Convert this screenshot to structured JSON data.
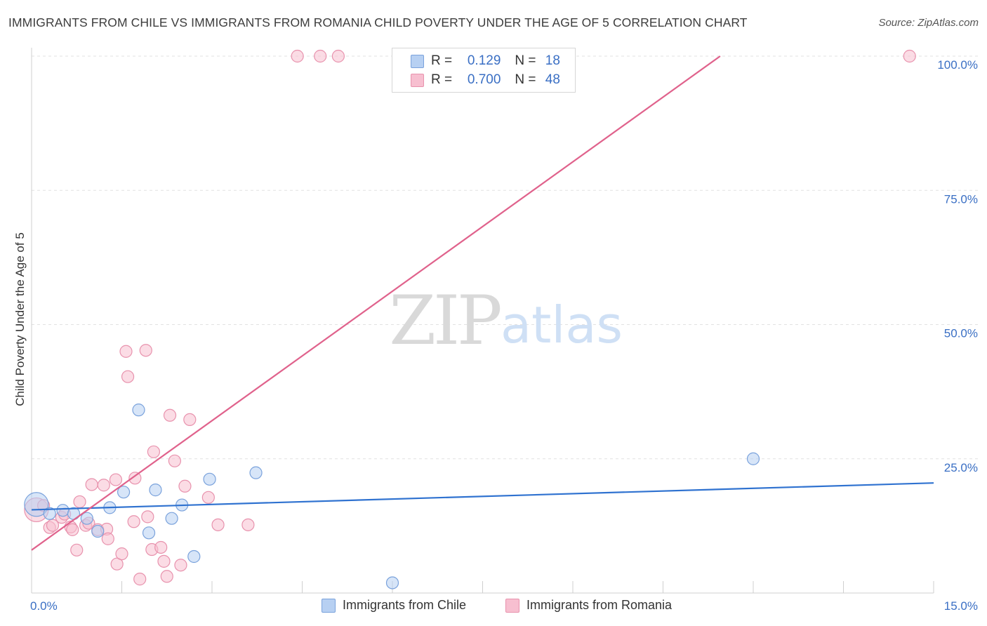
{
  "header": {
    "title": "IMMIGRANTS FROM CHILE VS IMMIGRANTS FROM ROMANIA CHILD POVERTY UNDER THE AGE OF 5 CORRELATION CHART",
    "source": "Source: ZipAtlas.com"
  },
  "watermark": {
    "zip": "ZIP",
    "atlas": "atlas"
  },
  "legend": {
    "rows": [
      {
        "r_label": "R =",
        "r_value": "0.129",
        "n_label": "N =",
        "n_value": "18"
      },
      {
        "r_label": "R =",
        "r_value": "0.700",
        "n_label": "N =",
        "n_value": "48"
      }
    ]
  },
  "colors": {
    "chile_fill": "#b7d0f2",
    "chile_stroke": "#7aa2dc",
    "chile_line": "#2f72d0",
    "romania_fill": "#f7bfd0",
    "romania_stroke": "#e892ad",
    "romania_line": "#e0628c",
    "grid": "#e2e2e2",
    "axis_label": "#3a6fc4"
  },
  "chart_data": {
    "type": "scatter",
    "title": "IMMIGRANTS FROM CHILE VS IMMIGRANTS FROM ROMANIA CHILD POVERTY UNDER THE AGE OF 5 CORRELATION CHART",
    "xlabel": "",
    "ylabel": "Child Poverty Under the Age of 5",
    "xlim": [
      0,
      15
    ],
    "ylim": [
      0,
      100
    ],
    "x_tick_labels": [
      "0.0%",
      "15.0%"
    ],
    "y_ticks": [
      25,
      50,
      75,
      100
    ],
    "y_tick_labels": [
      "25.0%",
      "50.0%",
      "75.0%",
      "100.0%"
    ],
    "grid": true,
    "legend_position": "top-center",
    "series": [
      {
        "name": "Immigrants from Chile",
        "R": 0.129,
        "N": 18,
        "points": [
          {
            "x": 0.08,
            "y": 16.5,
            "big": true
          },
          {
            "x": 0.3,
            "y": 14.8
          },
          {
            "x": 0.52,
            "y": 15.4
          },
          {
            "x": 0.7,
            "y": 14.8
          },
          {
            "x": 0.92,
            "y": 13.9
          },
          {
            "x": 1.1,
            "y": 11.5
          },
          {
            "x": 1.3,
            "y": 15.9
          },
          {
            "x": 1.53,
            "y": 18.8
          },
          {
            "x": 1.78,
            "y": 34.1
          },
          {
            "x": 1.95,
            "y": 11.2
          },
          {
            "x": 2.06,
            "y": 19.2
          },
          {
            "x": 2.33,
            "y": 13.9
          },
          {
            "x": 2.5,
            "y": 16.4
          },
          {
            "x": 2.7,
            "y": 6.8
          },
          {
            "x": 2.96,
            "y": 21.2
          },
          {
            "x": 3.73,
            "y": 22.4
          },
          {
            "x": 6.0,
            "y": 1.9
          },
          {
            "x": 12.0,
            "y": 25.0
          }
        ],
        "trend": {
          "x": [
            0,
            15
          ],
          "y": [
            15.5,
            20.5
          ]
        }
      },
      {
        "name": "Immigrants from Romania",
        "R": 0.7,
        "N": 48,
        "points": [
          {
            "x": 0.08,
            "y": 15.5,
            "big": true
          },
          {
            "x": 0.2,
            "y": 16.3
          },
          {
            "x": 0.3,
            "y": 12.2
          },
          {
            "x": 0.35,
            "y": 12.6
          },
          {
            "x": 0.5,
            "y": 14.1
          },
          {
            "x": 0.55,
            "y": 14.7
          },
          {
            "x": 0.65,
            "y": 12.3
          },
          {
            "x": 0.68,
            "y": 11.8
          },
          {
            "x": 0.75,
            "y": 8.0
          },
          {
            "x": 0.8,
            "y": 17.0
          },
          {
            "x": 0.9,
            "y": 12.6
          },
          {
            "x": 0.95,
            "y": 13.0
          },
          {
            "x": 1.0,
            "y": 20.2
          },
          {
            "x": 1.1,
            "y": 11.8
          },
          {
            "x": 1.2,
            "y": 20.1
          },
          {
            "x": 1.25,
            "y": 11.9
          },
          {
            "x": 1.27,
            "y": 10.1
          },
          {
            "x": 1.4,
            "y": 21.1
          },
          {
            "x": 1.42,
            "y": 5.4
          },
          {
            "x": 1.5,
            "y": 7.3
          },
          {
            "x": 1.57,
            "y": 45.0
          },
          {
            "x": 1.6,
            "y": 40.3
          },
          {
            "x": 1.7,
            "y": 13.3
          },
          {
            "x": 1.72,
            "y": 21.4
          },
          {
            "x": 1.8,
            "y": 2.6
          },
          {
            "x": 1.9,
            "y": 45.2
          },
          {
            "x": 1.93,
            "y": 14.2
          },
          {
            "x": 2.0,
            "y": 8.1
          },
          {
            "x": 2.03,
            "y": 26.3
          },
          {
            "x": 2.15,
            "y": 8.5
          },
          {
            "x": 2.2,
            "y": 5.9
          },
          {
            "x": 2.25,
            "y": 3.1
          },
          {
            "x": 2.3,
            "y": 33.1
          },
          {
            "x": 2.38,
            "y": 24.6
          },
          {
            "x": 2.48,
            "y": 5.2
          },
          {
            "x": 2.55,
            "y": 19.9
          },
          {
            "x": 2.63,
            "y": 32.3
          },
          {
            "x": 2.94,
            "y": 17.8
          },
          {
            "x": 3.1,
            "y": 12.7
          },
          {
            "x": 3.6,
            "y": 12.7
          },
          {
            "x": 4.42,
            "y": 100.0
          },
          {
            "x": 4.8,
            "y": 100.0
          },
          {
            "x": 5.1,
            "y": 100.0
          },
          {
            "x": 14.6,
            "y": 100.0
          }
        ],
        "trend": {
          "x": [
            0,
            11.45
          ],
          "y": [
            8.0,
            100.0
          ]
        }
      }
    ]
  }
}
